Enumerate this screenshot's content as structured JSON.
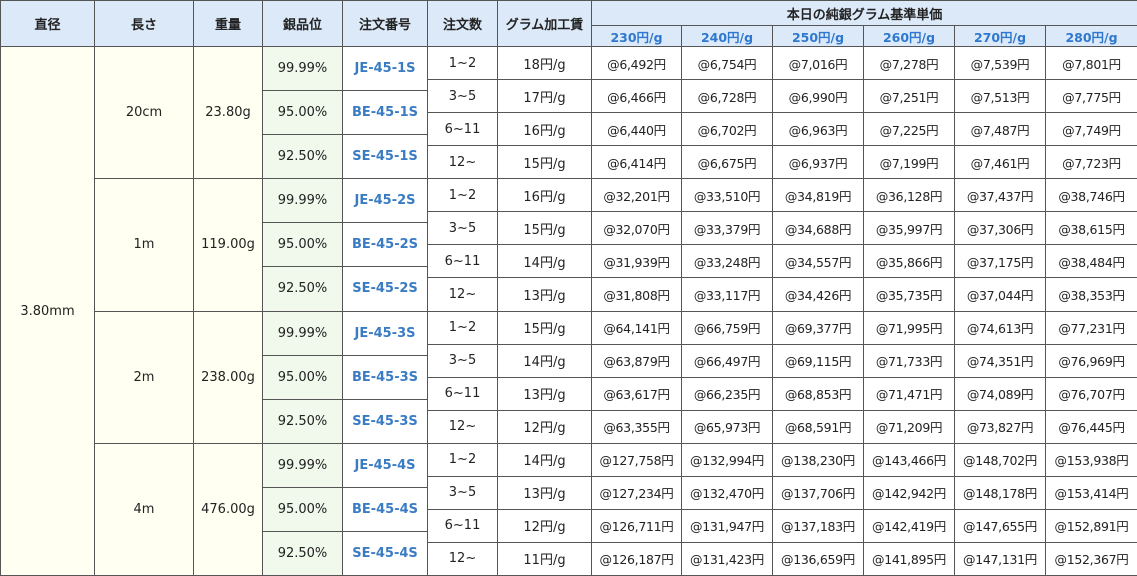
{
  "header": {
    "columns": [
      "直径",
      "長さ",
      "重量",
      "銀品位",
      "注文番号",
      "注文数",
      "グラム加工賃"
    ],
    "price_title": "本日の純銀グラム基準単価",
    "price_columns": [
      "230円/g",
      "240円/g",
      "250円/g",
      "260円/g",
      "270円/g",
      "280円/g"
    ]
  },
  "table": {
    "diameter": "3.80mm",
    "groups": [
      {
        "length": "20cm",
        "weight": "23.80g",
        "grades": [
          {
            "purity": "99.99%",
            "code": "JE-45-1S"
          },
          {
            "purity": "95.00%",
            "code": "BE-45-1S"
          },
          {
            "purity": "92.50%",
            "code": "SE-45-1S"
          }
        ],
        "rows": [
          [
            "1~2",
            "18円/g",
            "@6,492円",
            "@6,754円",
            "@7,016円",
            "@7,278円",
            "@7,539円",
            "@7,801円"
          ],
          [
            "3~5",
            "17円/g",
            "@6,466円",
            "@6,728円",
            "@6,990円",
            "@7,251円",
            "@7,513円",
            "@7,775円"
          ],
          [
            "6~11",
            "16円/g",
            "@6,440円",
            "@6,702円",
            "@6,963円",
            "@7,225円",
            "@7,487円",
            "@7,749円"
          ],
          [
            "12~",
            "15円/g",
            "@6,414円",
            "@6,675円",
            "@6,937円",
            "@7,199円",
            "@7,461円",
            "@7,723円"
          ]
        ]
      },
      {
        "length": "1m",
        "weight": "119.00g",
        "grades": [
          {
            "purity": "99.99%",
            "code": "JE-45-2S"
          },
          {
            "purity": "95.00%",
            "code": "BE-45-2S"
          },
          {
            "purity": "92.50%",
            "code": "SE-45-2S"
          }
        ],
        "rows": [
          [
            "1~2",
            "16円/g",
            "@32,201円",
            "@33,510円",
            "@34,819円",
            "@36,128円",
            "@37,437円",
            "@38,746円"
          ],
          [
            "3~5",
            "15円/g",
            "@32,070円",
            "@33,379円",
            "@34,688円",
            "@35,997円",
            "@37,306円",
            "@38,615円"
          ],
          [
            "6~11",
            "14円/g",
            "@31,939円",
            "@33,248円",
            "@34,557円",
            "@35,866円",
            "@37,175円",
            "@38,484円"
          ],
          [
            "12~",
            "13円/g",
            "@31,808円",
            "@33,117円",
            "@34,426円",
            "@35,735円",
            "@37,044円",
            "@38,353円"
          ]
        ]
      },
      {
        "length": "2m",
        "weight": "238.00g",
        "grades": [
          {
            "purity": "99.99%",
            "code": "JE-45-3S"
          },
          {
            "purity": "95.00%",
            "code": "BE-45-3S"
          },
          {
            "purity": "92.50%",
            "code": "SE-45-3S"
          }
        ],
        "rows": [
          [
            "1~2",
            "15円/g",
            "@64,141円",
            "@66,759円",
            "@69,377円",
            "@71,995円",
            "@74,613円",
            "@77,231円"
          ],
          [
            "3~5",
            "14円/g",
            "@63,879円",
            "@66,497円",
            "@69,115円",
            "@71,733円",
            "@74,351円",
            "@76,969円"
          ],
          [
            "6~11",
            "13円/g",
            "@63,617円",
            "@66,235円",
            "@68,853円",
            "@71,471円",
            "@74,089円",
            "@76,707円"
          ],
          [
            "12~",
            "12円/g",
            "@63,355円",
            "@65,973円",
            "@68,591円",
            "@71,209円",
            "@73,827円",
            "@76,445円"
          ]
        ]
      },
      {
        "length": "4m",
        "weight": "476.00g",
        "grades": [
          {
            "purity": "99.99%",
            "code": "JE-45-4S"
          },
          {
            "purity": "95.00%",
            "code": "BE-45-4S"
          },
          {
            "purity": "92.50%",
            "code": "SE-45-4S"
          }
        ],
        "rows": [
          [
            "1~2",
            "14円/g",
            "@127,758円",
            "@132,994円",
            "@138,230円",
            "@143,466円",
            "@148,702円",
            "@153,938円"
          ],
          [
            "3~5",
            "13円/g",
            "@127,234円",
            "@132,470円",
            "@137,706円",
            "@142,942円",
            "@148,178円",
            "@153,414円"
          ],
          [
            "6~11",
            "12円/g",
            "@126,711円",
            "@131,947円",
            "@137,183円",
            "@142,419円",
            "@147,655円",
            "@152,891円"
          ],
          [
            "12~",
            "11円/g",
            "@126,187円",
            "@131,423円",
            "@136,659円",
            "@141,895円",
            "@147,131円",
            "@152,367円"
          ]
        ]
      }
    ]
  }
}
